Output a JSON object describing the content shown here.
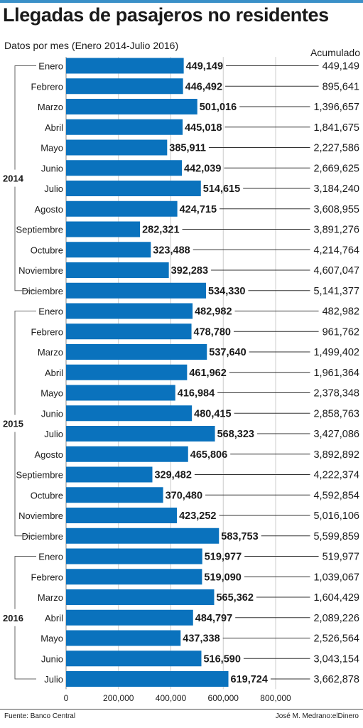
{
  "header": {
    "title": "Llegadas de pasajeros no residentes",
    "subtitle": "Datos por mes (Enero 2014-Julio 2016)",
    "cumulative_header": "Acumulado"
  },
  "footer": {
    "source": "Fuente: Banco Central",
    "credit": "José M. Medrano:elDinero"
  },
  "colors": {
    "bar": "#0a72bd",
    "top_rule": "#3a90c8",
    "text": "#1a1a1a",
    "grid": "#cccccc",
    "leader": "#333333"
  },
  "chart_data": {
    "type": "bar",
    "orientation": "horizontal",
    "title": "Llegadas de pasajeros no residentes",
    "subtitle": "Datos por mes (Enero 2014-Julio 2016)",
    "xlim": [
      0,
      800000
    ],
    "x_ticks": [
      "0",
      "200,000",
      "400,000",
      "600,000",
      "800,000"
    ],
    "grid": true,
    "groups": [
      {
        "year": "2014",
        "months": [
          {
            "month": "Enero",
            "value": 449149,
            "value_label": "449,149",
            "cumulative": "449,149"
          },
          {
            "month": "Febrero",
            "value": 446492,
            "value_label": "446,492",
            "cumulative": "895,641"
          },
          {
            "month": "Marzo",
            "value": 501016,
            "value_label": "501,016",
            "cumulative": "1,396,657"
          },
          {
            "month": "Abril",
            "value": 445018,
            "value_label": "445,018",
            "cumulative": "1,841,675"
          },
          {
            "month": "Mayo",
            "value": 385911,
            "value_label": "385,911",
            "cumulative": "2,227,586"
          },
          {
            "month": "Junio",
            "value": 442039,
            "value_label": "442,039",
            "cumulative": "2,669,625"
          },
          {
            "month": "Julio",
            "value": 514615,
            "value_label": "514,615",
            "cumulative": "3,184,240"
          },
          {
            "month": "Agosto",
            "value": 424715,
            "value_label": "424,715",
            "cumulative": "3,608,955"
          },
          {
            "month": "Septiembre",
            "value": 282321,
            "value_label": "282,321",
            "cumulative": "3,891,276"
          },
          {
            "month": "Octubre",
            "value": 323488,
            "value_label": "323,488",
            "cumulative": "4,214,764"
          },
          {
            "month": "Noviembre",
            "value": 392283,
            "value_label": "392,283",
            "cumulative": "4,607,047"
          },
          {
            "month": "Diciembre",
            "value": 534330,
            "value_label": "534,330",
            "cumulative": "5,141,377"
          }
        ]
      },
      {
        "year": "2015",
        "months": [
          {
            "month": "Enero",
            "value": 482982,
            "value_label": "482,982",
            "cumulative": "482,982"
          },
          {
            "month": "Febrero",
            "value": 478780,
            "value_label": "478,780",
            "cumulative": "961,762"
          },
          {
            "month": "Marzo",
            "value": 537640,
            "value_label": "537,640",
            "cumulative": "1,499,402"
          },
          {
            "month": "Abril",
            "value": 461962,
            "value_label": "461,962",
            "cumulative": "1,961,364"
          },
          {
            "month": "Mayo",
            "value": 416984,
            "value_label": "416,984",
            "cumulative": "2,378,348"
          },
          {
            "month": "Junio",
            "value": 480415,
            "value_label": "480,415",
            "cumulative": "2,858,763"
          },
          {
            "month": "Julio",
            "value": 568323,
            "value_label": "568,323",
            "cumulative": "3,427,086"
          },
          {
            "month": "Agosto",
            "value": 465806,
            "value_label": "465,806",
            "cumulative": "3,892,892"
          },
          {
            "month": "Septiembre",
            "value": 329482,
            "value_label": "329,482",
            "cumulative": "4,222,374"
          },
          {
            "month": "Octubre",
            "value": 370480,
            "value_label": "370,480",
            "cumulative": "4,592,854"
          },
          {
            "month": "Noviembre",
            "value": 423252,
            "value_label": "423,252",
            "cumulative": "5,016,106"
          },
          {
            "month": "Diciembre",
            "value": 583753,
            "value_label": "583,753",
            "cumulative": "5,599,859"
          }
        ]
      },
      {
        "year": "2016",
        "months": [
          {
            "month": "Enero",
            "value": 519977,
            "value_label": "519,977",
            "cumulative": "519,977"
          },
          {
            "month": "Febrero",
            "value": 519090,
            "value_label": "519,090",
            "cumulative": "1,039,067"
          },
          {
            "month": "Marzo",
            "value": 565362,
            "value_label": "565,362",
            "cumulative": "1,604,429"
          },
          {
            "month": "Abril",
            "value": 484797,
            "value_label": "484,797",
            "cumulative": "2,089,226"
          },
          {
            "month": "Mayo",
            "value": 437338,
            "value_label": "437,338",
            "cumulative": "2,526,564"
          },
          {
            "month": "Junio",
            "value": 516590,
            "value_label": "516,590",
            "cumulative": "3,043,154"
          },
          {
            "month": "Julio",
            "value": 619724,
            "value_label": "619,724",
            "cumulative": "3,662,878"
          }
        ]
      }
    ]
  }
}
